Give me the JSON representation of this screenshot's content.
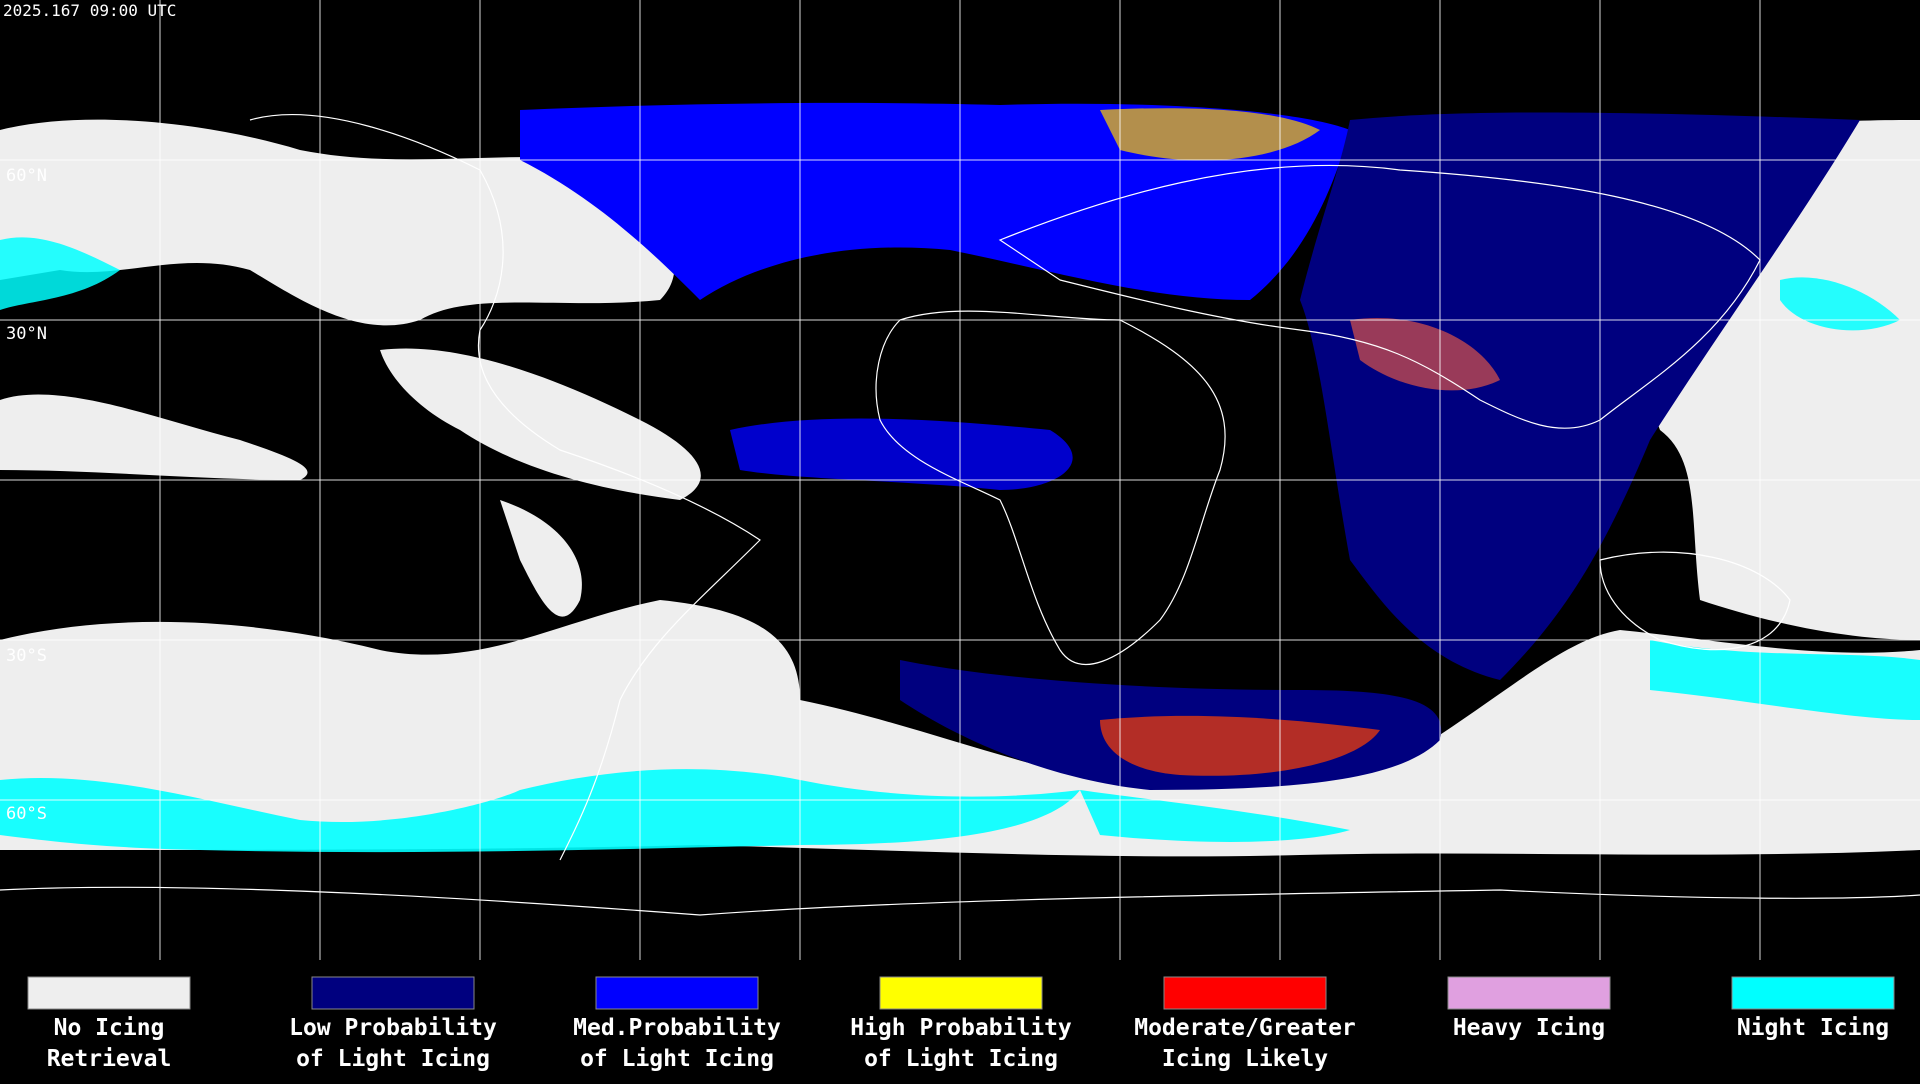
{
  "map": {
    "timestamp": "2025.167 09:00 UTC",
    "latitude_labels": [
      "60°N",
      "30°N",
      "30°S",
      "60°S"
    ]
  },
  "legend": {
    "items": [
      {
        "lines": [
          "No Icing",
          "Retrieval"
        ],
        "color": "#eeeeee"
      },
      {
        "lines": [
          "Low Probability",
          "of Light Icing"
        ],
        "color": "#00007f"
      },
      {
        "lines": [
          "Med.Probability",
          "of Light Icing"
        ],
        "color": "#0000ff"
      },
      {
        "lines": [
          "High Probability",
          "of Light Icing"
        ],
        "color": "#ffff00"
      },
      {
        "lines": [
          "Moderate/Greater",
          "Icing Likely"
        ],
        "color": "#ff0000"
      },
      {
        "lines": [
          "Heavy Icing"
        ],
        "color": "#e0a0e0"
      },
      {
        "lines": [
          "Night Icing"
        ],
        "color": "#00ffff"
      }
    ]
  }
}
